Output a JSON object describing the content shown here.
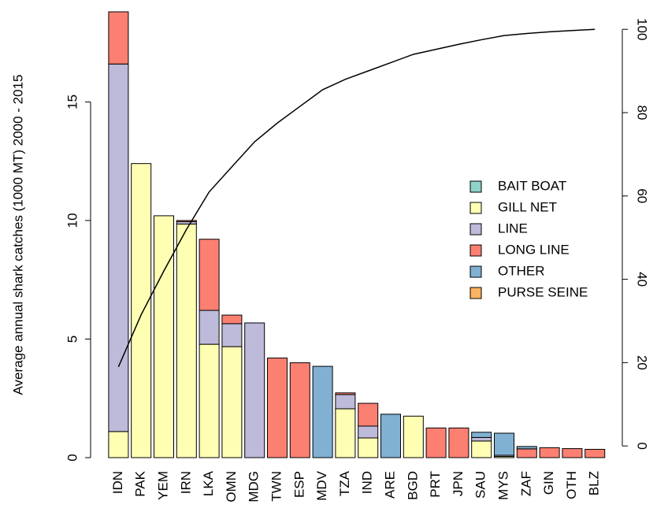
{
  "chart_data": {
    "type": "bar",
    "stacked": true,
    "ylabel": "Average annual shark catches (1000 MT) 2000 - 2015",
    "categories": [
      "IDN",
      "PAK",
      "YEM",
      "IRN",
      "LKA",
      "OMN",
      "MDG",
      "TWN",
      "ESP",
      "MDV",
      "TZA",
      "IND",
      "ARE",
      "BGD",
      "PRT",
      "JPN",
      "SAU",
      "MYS",
      "ZAF",
      "GIN",
      "OTH",
      "BLZ"
    ],
    "series": [
      {
        "name": "BAIT BOAT",
        "color": "#8dd3c7",
        "values": [
          0,
          0,
          0,
          0,
          0,
          0,
          0,
          0,
          0,
          0,
          0,
          0,
          0,
          0,
          0,
          0,
          0,
          0,
          0,
          0,
          0,
          0
        ]
      },
      {
        "name": "GILL NET",
        "color": "#ffffb3",
        "values": [
          1.1,
          12.4,
          10.2,
          9.85,
          4.78,
          4.68,
          0,
          0,
          0,
          0,
          2.06,
          0.83,
          0,
          1.75,
          0,
          0,
          0.7,
          0.05,
          0,
          0,
          0,
          0
        ]
      },
      {
        "name": "LINE",
        "color": "#bebada",
        "values": [
          15.5,
          0,
          0,
          0.1,
          1.43,
          0.97,
          5.68,
          0,
          0,
          0,
          0.6,
          0.5,
          0,
          0,
          0,
          0,
          0.15,
          0.05,
          0,
          0,
          0,
          0
        ]
      },
      {
        "name": "LONG LINE",
        "color": "#fb8072",
        "values": [
          2.2,
          0,
          0,
          0.05,
          3.0,
          0.36,
          0,
          4.2,
          4.0,
          0,
          0.07,
          0.96,
          0,
          0,
          1.25,
          1.25,
          0,
          0,
          0.37,
          0.42,
          0.38,
          0.35
        ]
      },
      {
        "name": "OTHER",
        "color": "#80b1d3",
        "values": [
          0,
          0,
          0,
          0,
          0,
          0,
          0,
          0,
          0,
          3.85,
          0,
          0,
          1.83,
          0,
          0,
          0,
          0.22,
          0.93,
          0.1,
          0,
          0,
          0
        ]
      },
      {
        "name": "PURSE SEINE",
        "color": "#fdb462",
        "values": [
          0,
          0,
          0,
          0,
          0,
          0,
          0,
          0,
          0,
          0,
          0,
          0,
          0,
          0,
          0,
          0,
          0,
          0,
          0,
          0,
          0,
          0
        ]
      }
    ],
    "cumulative": {
      "axis": "y2",
      "color": "#000000",
      "values": [
        19,
        31.5,
        42,
        52,
        61,
        67,
        73,
        77.5,
        81.5,
        85.5,
        88,
        90,
        92,
        94,
        95.2,
        96.4,
        97.5,
        98.5,
        99,
        99.4,
        99.7,
        100
      ]
    },
    "ylim": [
      0,
      18.8
    ],
    "yticks": [
      0,
      5,
      10,
      15
    ],
    "y2lim": [
      -2.8,
      104.2
    ],
    "y2ticks": [
      0,
      20,
      40,
      60,
      80,
      100
    ],
    "legend": "right"
  }
}
